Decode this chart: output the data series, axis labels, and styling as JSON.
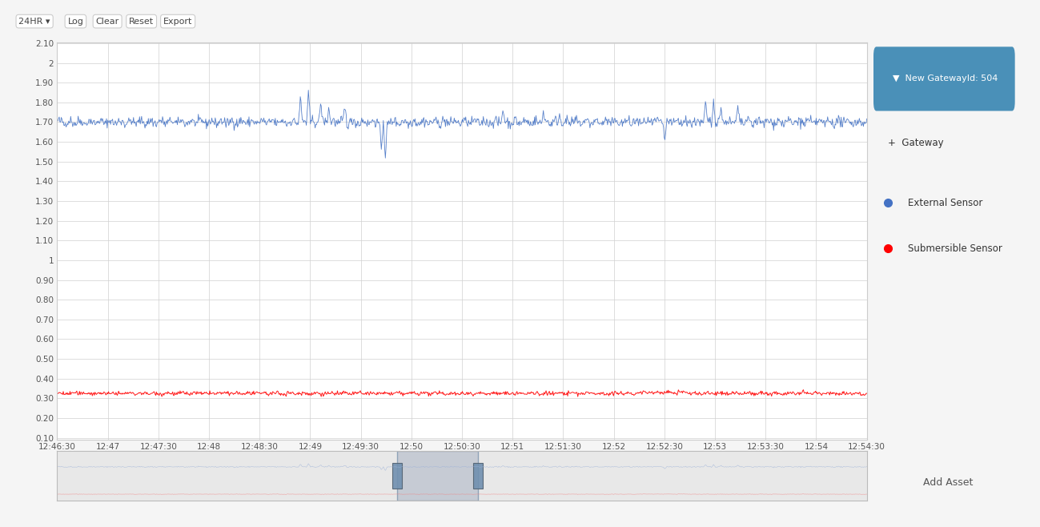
{
  "title": "",
  "y_min": 0.1,
  "y_max": 2.1,
  "y_ticks": [
    0.1,
    0.2,
    0.3,
    0.4,
    0.5,
    0.6,
    0.7,
    0.8,
    0.9,
    1,
    1.1,
    1.2,
    1.3,
    1.4,
    1.5,
    1.6,
    1.7,
    1.8,
    1.9,
    2,
    2.1
  ],
  "x_tick_labels": [
    "12:46:30",
    "12:47",
    "12:47:30",
    "12:48",
    "12:48:30",
    "12:49",
    "12:49:30",
    "12:50",
    "12:50:30",
    "12:51",
    "12:51:30",
    "12:52",
    "12:52:30",
    "12:53",
    "12:53:30",
    "12:54",
    "12:54:30"
  ],
  "external_baseline": 1.7,
  "external_noise_std": 0.012,
  "submersible_baseline": 0.325,
  "submersible_noise_std": 0.005,
  "external_color": "#4472C4",
  "submersible_color": "#FF0000",
  "background_color": "#f5f5f5",
  "plot_bg_color": "#ffffff",
  "grid_color": "#d0d0d0",
  "legend_title": "New GatewayId: 504",
  "legend_external": "External Sensor",
  "legend_submersible": "Submersible Sensor",
  "n_points": 1200
}
